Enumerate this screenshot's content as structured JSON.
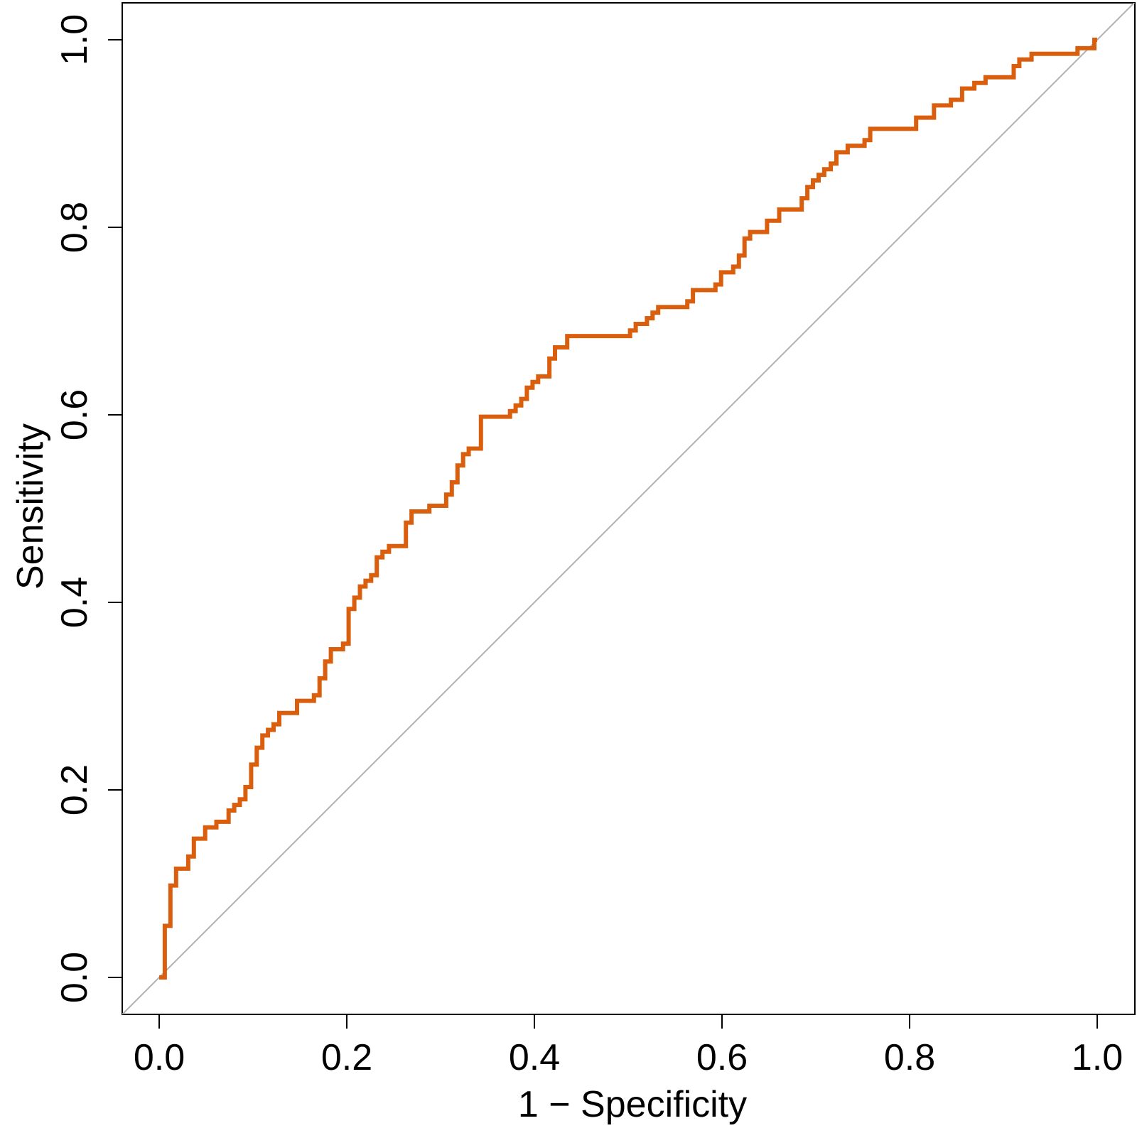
{
  "chart_data": {
    "type": "line",
    "title": "",
    "xlabel": "1 − Specificity",
    "ylabel": "Sensitivity",
    "xlim": [
      0.0,
      1.0
    ],
    "ylim": [
      0.0,
      1.0
    ],
    "x_ticks": [
      "0.0",
      "0.2",
      "0.4",
      "0.6",
      "0.8",
      "1.0"
    ],
    "y_ticks": [
      "0.0",
      "0.2",
      "0.4",
      "0.6",
      "0.8",
      "1.0"
    ],
    "grid": false,
    "legend": "none",
    "reference_line": {
      "from": [
        0,
        0
      ],
      "to": [
        1,
        1
      ],
      "color": "#b0b0b0"
    },
    "series": [
      {
        "color": "#d95f0e",
        "step": true,
        "points": [
          [
            0.0,
            0.0
          ],
          [
            0.006,
            0.0
          ],
          [
            0.006,
            0.055
          ],
          [
            0.012,
            0.055
          ],
          [
            0.012,
            0.098
          ],
          [
            0.018,
            0.098
          ],
          [
            0.018,
            0.116
          ],
          [
            0.031,
            0.116
          ],
          [
            0.031,
            0.129
          ],
          [
            0.037,
            0.129
          ],
          [
            0.037,
            0.148
          ],
          [
            0.049,
            0.148
          ],
          [
            0.049,
            0.16
          ],
          [
            0.061,
            0.16
          ],
          [
            0.061,
            0.166
          ],
          [
            0.074,
            0.166
          ],
          [
            0.074,
            0.178
          ],
          [
            0.08,
            0.178
          ],
          [
            0.08,
            0.184
          ],
          [
            0.086,
            0.184
          ],
          [
            0.086,
            0.19
          ],
          [
            0.092,
            0.19
          ],
          [
            0.092,
            0.203
          ],
          [
            0.098,
            0.203
          ],
          [
            0.098,
            0.227
          ],
          [
            0.104,
            0.227
          ],
          [
            0.104,
            0.245
          ],
          [
            0.11,
            0.245
          ],
          [
            0.11,
            0.258
          ],
          [
            0.116,
            0.258
          ],
          [
            0.116,
            0.264
          ],
          [
            0.122,
            0.264
          ],
          [
            0.122,
            0.27
          ],
          [
            0.128,
            0.27
          ],
          [
            0.128,
            0.282
          ],
          [
            0.147,
            0.282
          ],
          [
            0.147,
            0.295
          ],
          [
            0.165,
            0.295
          ],
          [
            0.165,
            0.301
          ],
          [
            0.171,
            0.301
          ],
          [
            0.171,
            0.319
          ],
          [
            0.177,
            0.319
          ],
          [
            0.177,
            0.337
          ],
          [
            0.183,
            0.337
          ],
          [
            0.183,
            0.35
          ],
          [
            0.196,
            0.35
          ],
          [
            0.196,
            0.356
          ],
          [
            0.202,
            0.356
          ],
          [
            0.202,
            0.393
          ],
          [
            0.208,
            0.393
          ],
          [
            0.208,
            0.405
          ],
          [
            0.214,
            0.405
          ],
          [
            0.214,
            0.417
          ],
          [
            0.22,
            0.417
          ],
          [
            0.22,
            0.423
          ],
          [
            0.226,
            0.423
          ],
          [
            0.226,
            0.429
          ],
          [
            0.232,
            0.429
          ],
          [
            0.232,
            0.448
          ],
          [
            0.238,
            0.448
          ],
          [
            0.238,
            0.454
          ],
          [
            0.245,
            0.454
          ],
          [
            0.245,
            0.46
          ],
          [
            0.263,
            0.46
          ],
          [
            0.263,
            0.485
          ],
          [
            0.269,
            0.485
          ],
          [
            0.269,
            0.497
          ],
          [
            0.288,
            0.497
          ],
          [
            0.288,
            0.503
          ],
          [
            0.306,
            0.503
          ],
          [
            0.306,
            0.515
          ],
          [
            0.312,
            0.515
          ],
          [
            0.312,
            0.528
          ],
          [
            0.318,
            0.528
          ],
          [
            0.318,
            0.546
          ],
          [
            0.324,
            0.546
          ],
          [
            0.324,
            0.558
          ],
          [
            0.33,
            0.558
          ],
          [
            0.33,
            0.564
          ],
          [
            0.343,
            0.564
          ],
          [
            0.343,
            0.598
          ],
          [
            0.374,
            0.598
          ],
          [
            0.374,
            0.604
          ],
          [
            0.38,
            0.604
          ],
          [
            0.38,
            0.61
          ],
          [
            0.386,
            0.61
          ],
          [
            0.386,
            0.617
          ],
          [
            0.392,
            0.617
          ],
          [
            0.392,
            0.629
          ],
          [
            0.398,
            0.629
          ],
          [
            0.398,
            0.635
          ],
          [
            0.404,
            0.635
          ],
          [
            0.404,
            0.641
          ],
          [
            0.416,
            0.641
          ],
          [
            0.416,
            0.66
          ],
          [
            0.422,
            0.66
          ],
          [
            0.422,
            0.672
          ],
          [
            0.435,
            0.672
          ],
          [
            0.435,
            0.684
          ],
          [
            0.502,
            0.684
          ],
          [
            0.502,
            0.69
          ],
          [
            0.508,
            0.69
          ],
          [
            0.508,
            0.697
          ],
          [
            0.52,
            0.697
          ],
          [
            0.52,
            0.703
          ],
          [
            0.526,
            0.703
          ],
          [
            0.526,
            0.709
          ],
          [
            0.532,
            0.709
          ],
          [
            0.532,
            0.715
          ],
          [
            0.563,
            0.715
          ],
          [
            0.563,
            0.721
          ],
          [
            0.569,
            0.721
          ],
          [
            0.569,
            0.733
          ],
          [
            0.593,
            0.733
          ],
          [
            0.593,
            0.739
          ],
          [
            0.599,
            0.739
          ],
          [
            0.599,
            0.752
          ],
          [
            0.612,
            0.752
          ],
          [
            0.612,
            0.758
          ],
          [
            0.618,
            0.758
          ],
          [
            0.618,
            0.77
          ],
          [
            0.624,
            0.77
          ],
          [
            0.624,
            0.788
          ],
          [
            0.63,
            0.788
          ],
          [
            0.63,
            0.795
          ],
          [
            0.648,
            0.795
          ],
          [
            0.648,
            0.807
          ],
          [
            0.661,
            0.807
          ],
          [
            0.661,
            0.819
          ],
          [
            0.685,
            0.819
          ],
          [
            0.685,
            0.831
          ],
          [
            0.691,
            0.831
          ],
          [
            0.691,
            0.843
          ],
          [
            0.697,
            0.843
          ],
          [
            0.697,
            0.85
          ],
          [
            0.703,
            0.85
          ],
          [
            0.703,
            0.856
          ],
          [
            0.709,
            0.856
          ],
          [
            0.709,
            0.862
          ],
          [
            0.716,
            0.862
          ],
          [
            0.716,
            0.868
          ],
          [
            0.722,
            0.868
          ],
          [
            0.722,
            0.88
          ],
          [
            0.734,
            0.88
          ],
          [
            0.734,
            0.887
          ],
          [
            0.752,
            0.887
          ],
          [
            0.752,
            0.893
          ],
          [
            0.758,
            0.893
          ],
          [
            0.758,
            0.905
          ],
          [
            0.807,
            0.905
          ],
          [
            0.807,
            0.917
          ],
          [
            0.826,
            0.917
          ],
          [
            0.826,
            0.93
          ],
          [
            0.844,
            0.93
          ],
          [
            0.844,
            0.936
          ],
          [
            0.856,
            0.936
          ],
          [
            0.856,
            0.948
          ],
          [
            0.869,
            0.948
          ],
          [
            0.869,
            0.954
          ],
          [
            0.881,
            0.954
          ],
          [
            0.881,
            0.96
          ],
          [
            0.911,
            0.96
          ],
          [
            0.911,
            0.972
          ],
          [
            0.917,
            0.972
          ],
          [
            0.917,
            0.979
          ],
          [
            0.93,
            0.979
          ],
          [
            0.93,
            0.985
          ],
          [
            0.979,
            0.985
          ],
          [
            0.979,
            0.991
          ],
          [
            0.997,
            0.991
          ],
          [
            0.997,
            1.0
          ],
          [
            1.0,
            1.0
          ]
        ]
      }
    ]
  }
}
